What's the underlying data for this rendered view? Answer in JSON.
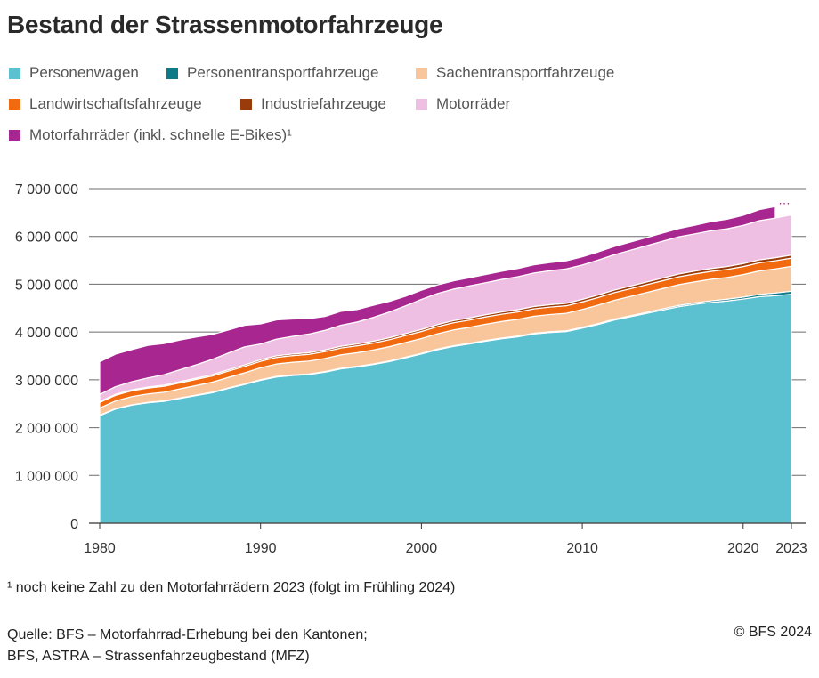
{
  "title": "Bestand der Strassenmotorfahrzeuge",
  "footnote": "¹  noch keine Zahl zu den Motorfahrrädern 2023 (folgt im Frühling 2024)",
  "source_line1": "Quelle: BFS – Motorfahrrad-Erhebung bei den Kantonen;",
  "source_line2": "BFS, ASTRA – Strassenfahrzeugbestand (MFZ)",
  "copyright": "© BFS 2024",
  "chart_data": {
    "type": "area",
    "stacked": true,
    "title": "Bestand der Strassenmotorfahrzeuge",
    "xlabel": "",
    "ylabel": "",
    "ylim": [
      0,
      7000000
    ],
    "xlim": [
      1980,
      2023
    ],
    "yticks": [
      0,
      1000000,
      2000000,
      3000000,
      4000000,
      5000000,
      6000000,
      7000000
    ],
    "ytick_labels": [
      "0",
      "1 000 000",
      "2 000 000",
      "3 000 000",
      "4 000 000",
      "5 000 000",
      "6 000 000",
      "7 000 000"
    ],
    "xticks": [
      1980,
      1990,
      2000,
      2010,
      2020,
      2023
    ],
    "xtick_labels": [
      "1980",
      "1990",
      "2000",
      "2010",
      "2020",
      "2023"
    ],
    "grid": "horizontal",
    "legend_position": "top",
    "missing_value_marker": "…",
    "x": [
      1980,
      1981,
      1982,
      1983,
      1984,
      1985,
      1986,
      1987,
      1988,
      1989,
      1990,
      1991,
      1992,
      1993,
      1994,
      1995,
      1996,
      1997,
      1998,
      1999,
      2000,
      2001,
      2002,
      2003,
      2004,
      2005,
      2006,
      2007,
      2008,
      2009,
      2010,
      2011,
      2012,
      2013,
      2014,
      2015,
      2016,
      2017,
      2018,
      2019,
      2020,
      2021,
      2022,
      2023
    ],
    "series": [
      {
        "name": "Personenwagen",
        "color": "#5bc0d0",
        "values": [
          2250000,
          2390000,
          2470000,
          2520000,
          2550000,
          2610000,
          2670000,
          2730000,
          2820000,
          2900000,
          2990000,
          3060000,
          3090000,
          3110000,
          3160000,
          3230000,
          3270000,
          3320000,
          3380000,
          3460000,
          3540000,
          3630000,
          3700000,
          3750000,
          3810000,
          3860000,
          3900000,
          3960000,
          3990000,
          4010000,
          4080000,
          4160000,
          4250000,
          4320000,
          4390000,
          4460000,
          4530000,
          4580000,
          4620000,
          4650000,
          4690000,
          4740000,
          4760000,
          4790000
        ]
      },
      {
        "name": "Personentransportfahrzeuge",
        "color": "#0e7a87",
        "values": [
          10000,
          10000,
          10000,
          10000,
          10000,
          11000,
          11000,
          11000,
          11000,
          11000,
          12000,
          12000,
          12000,
          12000,
          12000,
          13000,
          13000,
          13000,
          13000,
          14000,
          14000,
          14000,
          15000,
          15000,
          15000,
          16000,
          16000,
          16000,
          17000,
          17000,
          18000,
          19000,
          20000,
          21000,
          23000,
          25000,
          27000,
          30000,
          33000,
          37000,
          41000,
          48000,
          56000,
          65000
        ]
      },
      {
        "name": "Sachentransportfahrzeuge",
        "color": "#f9c59a",
        "values": [
          150000,
          160000,
          170000,
          175000,
          180000,
          190000,
          200000,
          210000,
          220000,
          235000,
          250000,
          260000,
          265000,
          270000,
          275000,
          280000,
          285000,
          290000,
          300000,
          305000,
          310000,
          320000,
          330000,
          335000,
          340000,
          345000,
          350000,
          355000,
          360000,
          365000,
          375000,
          385000,
          395000,
          405000,
          415000,
          425000,
          435000,
          440000,
          450000,
          455000,
          470000,
          490000,
          505000,
          520000
        ]
      },
      {
        "name": "Landwirtschaftsfahrzeuge",
        "color": "#f26a0f",
        "values": [
          115000,
          118000,
          120000,
          122000,
          124000,
          126000,
          128000,
          130000,
          132000,
          134000,
          136000,
          138000,
          140000,
          141000,
          142000,
          143000,
          144000,
          145000,
          146000,
          147000,
          148000,
          149000,
          150000,
          151000,
          152000,
          153000,
          154000,
          155000,
          156000,
          157000,
          158000,
          159000,
          160000,
          161000,
          162000,
          163000,
          164000,
          165000,
          166000,
          167000,
          168000,
          169000,
          170000,
          171000
        ]
      },
      {
        "name": "Industriefahrzeuge",
        "color": "#9a3b0c",
        "values": [
          20000,
          21000,
          22000,
          23000,
          24000,
          25000,
          26000,
          27000,
          28000,
          30000,
          32000,
          33000,
          34000,
          35000,
          36000,
          37000,
          38000,
          39000,
          40000,
          41000,
          42000,
          43000,
          44000,
          45000,
          46000,
          47000,
          48000,
          49000,
          50000,
          51000,
          52000,
          53000,
          54000,
          55000,
          56000,
          57000,
          58000,
          59000,
          60000,
          61000,
          62000,
          63000,
          64000,
          65000
        ]
      },
      {
        "name": "Motorräder",
        "color": "#efbfe3",
        "values": [
          150000,
          160000,
          170000,
          190000,
          220000,
          250000,
          280000,
          320000,
          350000,
          380000,
          330000,
          350000,
          370000,
          390000,
          410000,
          440000,
          460000,
          500000,
          540000,
          580000,
          630000,
          650000,
          660000,
          670000,
          670000,
          680000,
          690000,
          700000,
          710000,
          720000,
          720000,
          730000,
          740000,
          750000,
          760000,
          770000,
          780000,
          780000,
          790000,
          790000,
          800000,
          820000,
          830000,
          840000
        ]
      },
      {
        "name": "Motorfahrräder (inkl. schnelle E-Bikes)¹",
        "color": "#a8268f",
        "values": [
          680000,
          680000,
          670000,
          680000,
          650000,
          620000,
          580000,
          520000,
          480000,
          450000,
          420000,
          400000,
          360000,
          320000,
          290000,
          290000,
          260000,
          250000,
          220000,
          200000,
          190000,
          180000,
          170000,
          170000,
          170000,
          170000,
          170000,
          170000,
          170000,
          170000,
          170000,
          170000,
          170000,
          170000,
          170000,
          170000,
          170000,
          180000,
          190000,
          200000,
          210000,
          230000,
          240000,
          null
        ]
      }
    ]
  }
}
